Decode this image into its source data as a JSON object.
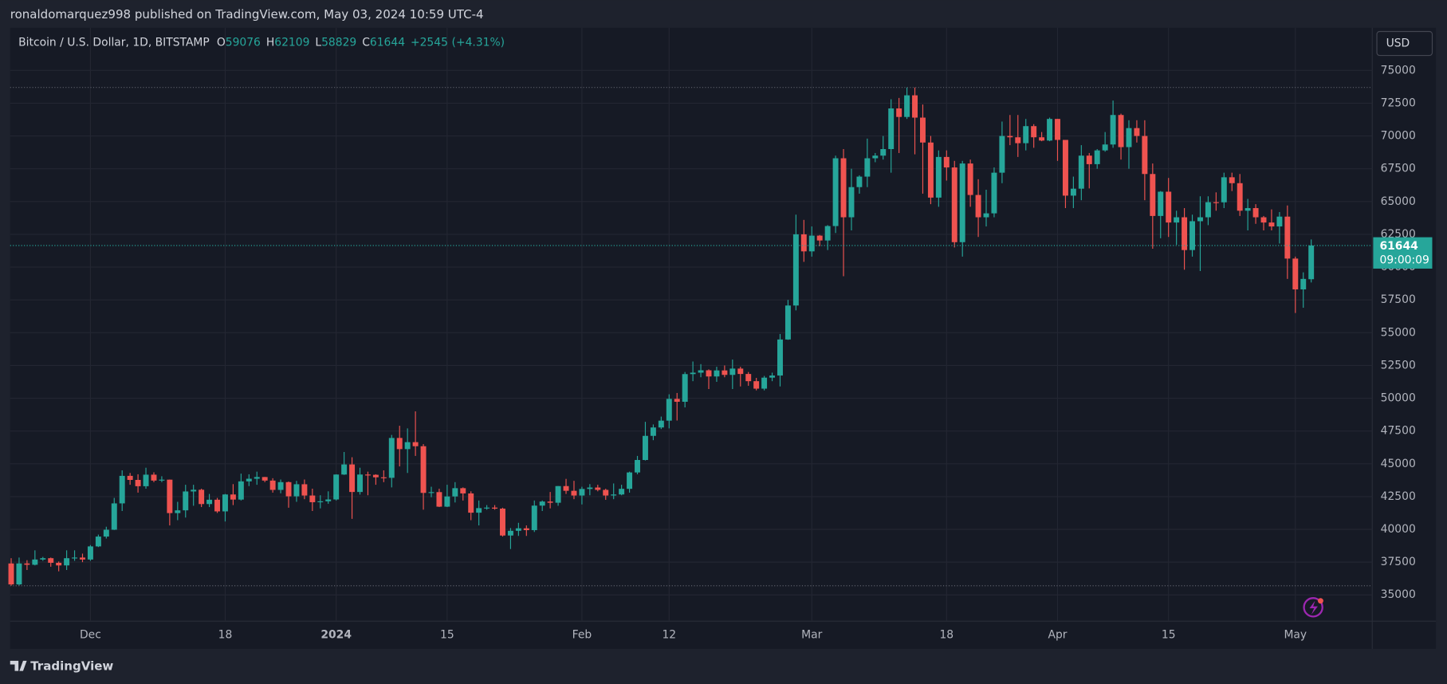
{
  "header": {
    "publisher": "ronaldomarquez998 published on TradingView.com, May 03, 2024 10:59 UTC-4"
  },
  "footer": {
    "brand": "TradingView"
  },
  "toolbar": {
    "currency": "USD"
  },
  "chart_data": {
    "type": "candlestick",
    "symbol": "Bitcoin / U.S. Dollar, 1D, BITSTAMP",
    "legend_labels": [
      "O",
      "H",
      "L",
      "C"
    ],
    "change": "+2545",
    "change_pct": "(+4.31%)",
    "countdown": "09:00:09",
    "up_color": "#26a69a",
    "down_color": "#ef5350",
    "grid": true,
    "ylim": [
      33000,
      78250
    ],
    "yticks": [
      35000,
      37500,
      40000,
      42500,
      45000,
      47500,
      50000,
      52500,
      55000,
      57500,
      60000,
      62500,
      65000,
      67500,
      70000,
      72500,
      75000
    ],
    "categories": [
      null,
      null,
      null,
      null,
      null,
      null,
      null,
      null,
      null,
      null,
      "Dec",
      null,
      null,
      null,
      null,
      null,
      null,
      null,
      null,
      null,
      null,
      null,
      null,
      null,
      null,
      null,
      null,
      "18",
      null,
      null,
      null,
      null,
      null,
      null,
      null,
      null,
      null,
      null,
      null,
      null,
      null,
      "2024",
      null,
      null,
      null,
      null,
      null,
      null,
      null,
      null,
      null,
      null,
      null,
      null,
      null,
      "15",
      null,
      null,
      null,
      null,
      null,
      null,
      null,
      null,
      null,
      null,
      null,
      null,
      null,
      null,
      null,
      null,
      "Feb",
      null,
      null,
      null,
      null,
      null,
      null,
      null,
      null,
      null,
      null,
      "12",
      null,
      null,
      null,
      null,
      null,
      null,
      null,
      null,
      null,
      null,
      null,
      null,
      null,
      null,
      null,
      null,
      null,
      "Mar",
      null,
      null,
      null,
      null,
      null,
      null,
      null,
      null,
      null,
      null,
      null,
      null,
      null,
      null,
      null,
      null,
      "18",
      null,
      null,
      null,
      null,
      null,
      null,
      null,
      null,
      null,
      null,
      null,
      null,
      null,
      "Apr",
      null,
      null,
      null,
      null,
      null,
      null,
      null,
      null,
      null,
      null,
      null,
      null,
      null,
      "15",
      null,
      null,
      null,
      null,
      null,
      null,
      null,
      null,
      null,
      null,
      null,
      null,
      null,
      null,
      null,
      "May",
      null,
      null
    ],
    "ohlc": [
      [
        37400,
        37800,
        35700,
        35800
      ],
      [
        35800,
        37850,
        35700,
        37400
      ],
      [
        37400,
        37650,
        36900,
        37300
      ],
      [
        37300,
        38400,
        37250,
        37700
      ],
      [
        37700,
        37900,
        37600,
        37800
      ],
      [
        37800,
        37850,
        37150,
        37450
      ],
      [
        37450,
        37550,
        36800,
        37250
      ],
      [
        37250,
        38400,
        36900,
        37800
      ],
      [
        37800,
        38400,
        37600,
        37850
      ],
      [
        37850,
        38150,
        37500,
        37700
      ],
      [
        37700,
        38800,
        37600,
        38700
      ],
      [
        38700,
        39600,
        38650,
        39450
      ],
      [
        39450,
        40200,
        39300,
        39970
      ],
      [
        39970,
        42400,
        39950,
        41980
      ],
      [
        41980,
        44500,
        41400,
        44080
      ],
      [
        44080,
        44300,
        43400,
        43770
      ],
      [
        43770,
        44200,
        42800,
        43290
      ],
      [
        43290,
        44700,
        43100,
        44170
      ],
      [
        44170,
        44350,
        43600,
        43720
      ],
      [
        43720,
        44050,
        43600,
        43790
      ],
      [
        43790,
        43800,
        40300,
        41240
      ],
      [
        41240,
        42100,
        40700,
        41450
      ],
      [
        41450,
        43400,
        40900,
        42890
      ],
      [
        42890,
        43400,
        41800,
        43020
      ],
      [
        43020,
        43100,
        41700,
        41930
      ],
      [
        41930,
        42700,
        41700,
        42260
      ],
      [
        42260,
        42400,
        41250,
        41370
      ],
      [
        41370,
        42700,
        40600,
        42660
      ],
      [
        42660,
        43450,
        41850,
        42270
      ],
      [
        42270,
        44250,
        42200,
        43660
      ],
      [
        43660,
        44200,
        43300,
        43860
      ],
      [
        43860,
        44400,
        43400,
        43990
      ],
      [
        43990,
        44000,
        43600,
        43720
      ],
      [
        43720,
        43900,
        42800,
        43010
      ],
      [
        43010,
        43800,
        42750,
        43600
      ],
      [
        43600,
        43650,
        41650,
        42520
      ],
      [
        42520,
        43700,
        42100,
        43440
      ],
      [
        43440,
        43800,
        42300,
        42580
      ],
      [
        42580,
        43100,
        41400,
        42070
      ],
      [
        42070,
        42600,
        41600,
        42140
      ],
      [
        42140,
        42900,
        41950,
        42280
      ],
      [
        42280,
        44200,
        42200,
        44180
      ],
      [
        44180,
        45900,
        44150,
        44950
      ],
      [
        44950,
        45500,
        40800,
        42850
      ],
      [
        42850,
        44700,
        42650,
        44180
      ],
      [
        44180,
        44400,
        42600,
        44160
      ],
      [
        44160,
        44200,
        43400,
        43970
      ],
      [
        43970,
        44500,
        43600,
        43930
      ],
      [
        43930,
        47200,
        43200,
        46970
      ],
      [
        46970,
        47900,
        44800,
        46120
      ],
      [
        46120,
        47700,
        44300,
        46650
      ],
      [
        46650,
        49000,
        45600,
        46340
      ],
      [
        46340,
        46500,
        41500,
        42780
      ],
      [
        42780,
        43250,
        42450,
        42840
      ],
      [
        42840,
        43100,
        41700,
        41730
      ],
      [
        41730,
        43400,
        41700,
        42510
      ],
      [
        42510,
        43600,
        42050,
        43140
      ],
      [
        43140,
        43200,
        42200,
        42740
      ],
      [
        42740,
        42900,
        40700,
        41270
      ],
      [
        41270,
        42200,
        40300,
        41620
      ],
      [
        41620,
        41850,
        41500,
        41660
      ],
      [
        41660,
        41850,
        41500,
        41580
      ],
      [
        41580,
        41650,
        39450,
        39530
      ],
      [
        39530,
        40100,
        38500,
        39890
      ],
      [
        39890,
        40500,
        39500,
        40080
      ],
      [
        40080,
        40300,
        39500,
        39940
      ],
      [
        39940,
        42200,
        39800,
        41810
      ],
      [
        41810,
        42200,
        41400,
        42120
      ],
      [
        42120,
        42850,
        41600,
        42030
      ],
      [
        42030,
        43300,
        41800,
        43300
      ],
      [
        43300,
        43850,
        42700,
        42940
      ],
      [
        42940,
        43700,
        42300,
        42580
      ],
      [
        42580,
        43250,
        41900,
        43080
      ],
      [
        43080,
        43450,
        42600,
        43190
      ],
      [
        43190,
        43400,
        42900,
        43010
      ],
      [
        43010,
        43100,
        42250,
        42580
      ],
      [
        42580,
        43500,
        42300,
        42660
      ],
      [
        42660,
        43400,
        42600,
        43090
      ],
      [
        43090,
        44400,
        42800,
        44340
      ],
      [
        44340,
        45600,
        44200,
        45290
      ],
      [
        45290,
        48200,
        45250,
        47130
      ],
      [
        47130,
        48000,
        46800,
        47770
      ],
      [
        47770,
        48600,
        47650,
        48290
      ],
      [
        48290,
        50300,
        47700,
        49950
      ],
      [
        49950,
        50400,
        48300,
        49730
      ],
      [
        49730,
        52000,
        49300,
        51840
      ],
      [
        51840,
        52800,
        51300,
        51950
      ],
      [
        51950,
        52600,
        51600,
        52130
      ],
      [
        52130,
        52200,
        50700,
        51660
      ],
      [
        51660,
        52400,
        51250,
        52120
      ],
      [
        52120,
        52500,
        51600,
        51780
      ],
      [
        51780,
        52950,
        50700,
        52260
      ],
      [
        52260,
        52400,
        50900,
        51850
      ],
      [
        51850,
        52000,
        50950,
        51300
      ],
      [
        51300,
        51550,
        50600,
        50730
      ],
      [
        50730,
        51700,
        50600,
        51570
      ],
      [
        51570,
        51950,
        51300,
        51730
      ],
      [
        51730,
        54900,
        50900,
        54480
      ],
      [
        54480,
        57500,
        54450,
        57070
      ],
      [
        57070,
        64000,
        56700,
        62500
      ],
      [
        62500,
        63600,
        60400,
        61200
      ],
      [
        61200,
        63100,
        60800,
        62400
      ],
      [
        62400,
        62450,
        61600,
        62030
      ],
      [
        62030,
        63200,
        61300,
        63130
      ],
      [
        63130,
        68500,
        62600,
        68300
      ],
      [
        68300,
        69000,
        59300,
        63800
      ],
      [
        63800,
        67500,
        62800,
        66100
      ],
      [
        66100,
        67000,
        65600,
        66900
      ],
      [
        66900,
        69800,
        66100,
        68300
      ],
      [
        68300,
        68700,
        68000,
        68500
      ],
      [
        68500,
        70000,
        68200,
        69000
      ],
      [
        69000,
        72800,
        67200,
        72100
      ],
      [
        72100,
        72900,
        68700,
        71450
      ],
      [
        71450,
        73700,
        71300,
        73100
      ],
      [
        73100,
        73700,
        68600,
        71400
      ],
      [
        71400,
        72400,
        65600,
        69500
      ],
      [
        69500,
        70000,
        64800,
        65300
      ],
      [
        65300,
        68900,
        64600,
        68400
      ],
      [
        68400,
        68900,
        66600,
        67600
      ],
      [
        67600,
        68100,
        61500,
        61900
      ],
      [
        61900,
        68100,
        60800,
        67900
      ],
      [
        67900,
        68200,
        64600,
        65500
      ],
      [
        65500,
        66700,
        62300,
        63800
      ],
      [
        63800,
        65900,
        63100,
        64100
      ],
      [
        64100,
        67600,
        63800,
        67200
      ],
      [
        67200,
        71100,
        66400,
        70000
      ],
      [
        70000,
        71600,
        69300,
        69900
      ],
      [
        69900,
        71600,
        68400,
        69450
      ],
      [
        69450,
        71300,
        68900,
        70750
      ],
      [
        70750,
        70900,
        69100,
        69900
      ],
      [
        69900,
        70300,
        69600,
        69650
      ],
      [
        69650,
        71400,
        69600,
        71300
      ],
      [
        71300,
        71300,
        68100,
        69700
      ],
      [
        69700,
        69700,
        64500,
        65450
      ],
      [
        65450,
        66900,
        64500,
        65980
      ],
      [
        65980,
        69300,
        65100,
        68500
      ],
      [
        68500,
        68700,
        66000,
        67850
      ],
      [
        67850,
        69000,
        67500,
        68900
      ],
      [
        68900,
        70300,
        68800,
        69350
      ],
      [
        69350,
        72700,
        69100,
        71600
      ],
      [
        71600,
        71700,
        68200,
        69150
      ],
      [
        69150,
        71200,
        67500,
        70600
      ],
      [
        70600,
        71200,
        69500,
        70000
      ],
      [
        70000,
        71200,
        65100,
        67100
      ],
      [
        67100,
        67900,
        61400,
        63900
      ],
      [
        63900,
        65800,
        62200,
        65750
      ],
      [
        65750,
        66800,
        62300,
        63400
      ],
      [
        63400,
        64300,
        61700,
        63800
      ],
      [
        63800,
        64500,
        59800,
        61300
      ],
      [
        61300,
        64000,
        60800,
        63500
      ],
      [
        63500,
        65400,
        59700,
        63800
      ],
      [
        63800,
        65400,
        63200,
        64950
      ],
      [
        64950,
        65700,
        64300,
        64940
      ],
      [
        64940,
        67200,
        64500,
        66850
      ],
      [
        66850,
        67200,
        65800,
        66400
      ],
      [
        66400,
        67100,
        63900,
        64300
      ],
      [
        64300,
        65200,
        62800,
        64500
      ],
      [
        64500,
        64800,
        63300,
        63800
      ],
      [
        63800,
        63900,
        62800,
        63400
      ],
      [
        63400,
        64400,
        62800,
        63100
      ],
      [
        63100,
        64200,
        61800,
        63850
      ],
      [
        63850,
        64700,
        59100,
        60650
      ],
      [
        60650,
        60800,
        56500,
        58300
      ],
      [
        58300,
        59600,
        56900,
        59100
      ],
      [
        59076,
        62109,
        58829,
        61644
      ]
    ]
  }
}
